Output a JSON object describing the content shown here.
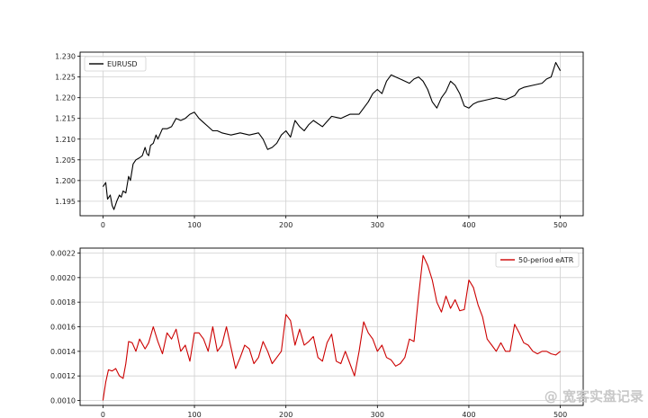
{
  "watermark": {
    "text": "@ 宽客实盘记录"
  },
  "chart_data": [
    {
      "type": "line",
      "title": "",
      "xlabel": "",
      "ylabel": "",
      "xlim": [
        -25,
        525
      ],
      "ylim": [
        1.1915,
        1.231
      ],
      "grid": true,
      "legend_position": "upper-left",
      "xticks": [
        0,
        100,
        200,
        300,
        400,
        500
      ],
      "xtick_labels": [
        "0",
        "100",
        "200",
        "300",
        "400",
        "500"
      ],
      "yticks": [
        1.195,
        1.2,
        1.205,
        1.21,
        1.215,
        1.22,
        1.225,
        1.23
      ],
      "ytick_labels": [
        "1.195",
        "1.200",
        "1.205",
        "1.210",
        "1.215",
        "1.220",
        "1.225",
        "1.230"
      ],
      "series": [
        {
          "name": "EURUSD",
          "color": "#000000",
          "x": [
            0,
            3,
            5,
            8,
            10,
            12,
            15,
            18,
            20,
            22,
            25,
            28,
            30,
            33,
            36,
            40,
            43,
            46,
            48,
            50,
            52,
            55,
            58,
            60,
            65,
            70,
            75,
            80,
            85,
            90,
            95,
            100,
            105,
            110,
            115,
            120,
            125,
            130,
            140,
            150,
            160,
            170,
            175,
            180,
            185,
            190,
            195,
            200,
            205,
            210,
            215,
            220,
            225,
            230,
            240,
            250,
            260,
            270,
            280,
            290,
            295,
            300,
            305,
            310,
            315,
            320,
            325,
            330,
            335,
            340,
            345,
            350,
            355,
            360,
            365,
            370,
            375,
            380,
            385,
            390,
            395,
            400,
            405,
            410,
            420,
            430,
            440,
            450,
            455,
            460,
            470,
            480,
            485,
            490,
            495,
            500
          ],
          "y": [
            1.1985,
            1.1995,
            1.1955,
            1.1965,
            1.194,
            1.193,
            1.195,
            1.1965,
            1.196,
            1.1975,
            1.197,
            1.201,
            1.2,
            1.204,
            1.205,
            1.2055,
            1.206,
            1.208,
            1.2065,
            1.206,
            1.2085,
            1.209,
            1.211,
            1.21,
            1.2125,
            1.2125,
            1.213,
            1.215,
            1.2145,
            1.215,
            1.216,
            1.2165,
            1.215,
            1.214,
            1.213,
            1.212,
            1.212,
            1.2115,
            1.211,
            1.2115,
            1.211,
            1.2115,
            1.21,
            1.2075,
            1.208,
            1.209,
            1.211,
            1.212,
            1.2105,
            1.2145,
            1.213,
            1.212,
            1.2135,
            1.2145,
            1.213,
            1.2155,
            1.215,
            1.216,
            1.216,
            1.219,
            1.221,
            1.222,
            1.221,
            1.224,
            1.2255,
            1.225,
            1.2245,
            1.224,
            1.2235,
            1.2245,
            1.225,
            1.224,
            1.222,
            1.219,
            1.2175,
            1.22,
            1.2215,
            1.224,
            1.223,
            1.221,
            1.218,
            1.2175,
            1.2185,
            1.219,
            1.2195,
            1.22,
            1.2195,
            1.2205,
            1.222,
            1.2225,
            1.223,
            1.2235,
            1.2245,
            1.225,
            1.2285,
            1.2265
          ]
        }
      ]
    },
    {
      "type": "line",
      "title": "",
      "xlabel": "",
      "ylabel": "",
      "xlim": [
        -25,
        525
      ],
      "ylim": [
        0.00096,
        0.00224
      ],
      "grid": true,
      "legend_position": "upper-right",
      "xticks": [
        0,
        100,
        200,
        300,
        400,
        500
      ],
      "xtick_labels": [
        "0",
        "100",
        "200",
        "300",
        "400",
        "500"
      ],
      "yticks": [
        0.001,
        0.0012,
        0.0014,
        0.0016,
        0.0018,
        0.002,
        0.0022
      ],
      "ytick_labels": [
        "0.0010",
        "0.0012",
        "0.0014",
        "0.0016",
        "0.0018",
        "0.0020",
        "0.0022"
      ],
      "series": [
        {
          "name": "50-period eATR",
          "color": "#cc0000",
          "x": [
            0,
            3,
            6,
            10,
            14,
            18,
            22,
            25,
            28,
            32,
            36,
            40,
            46,
            50,
            55,
            60,
            65,
            70,
            75,
            80,
            85,
            90,
            95,
            100,
            105,
            110,
            115,
            120,
            125,
            130,
            135,
            140,
            145,
            150,
            155,
            160,
            165,
            170,
            175,
            180,
            185,
            190,
            195,
            200,
            205,
            210,
            215,
            220,
            225,
            230,
            235,
            240,
            245,
            250,
            255,
            260,
            265,
            270,
            275,
            280,
            285,
            290,
            295,
            300,
            305,
            310,
            315,
            320,
            325,
            330,
            335,
            340,
            345,
            350,
            355,
            360,
            365,
            370,
            375,
            380,
            385,
            390,
            395,
            400,
            405,
            410,
            415,
            420,
            425,
            430,
            435,
            440,
            445,
            450,
            455,
            460,
            465,
            470,
            475,
            480,
            485,
            490,
            495,
            500
          ],
          "y": [
            0.001,
            0.00115,
            0.00125,
            0.00124,
            0.00126,
            0.0012,
            0.00118,
            0.0013,
            0.00148,
            0.00147,
            0.0014,
            0.0015,
            0.00142,
            0.00147,
            0.0016,
            0.00148,
            0.00138,
            0.00155,
            0.0015,
            0.00158,
            0.0014,
            0.00145,
            0.00132,
            0.00155,
            0.00155,
            0.0015,
            0.0014,
            0.0016,
            0.0014,
            0.00145,
            0.0016,
            0.00143,
            0.00126,
            0.00135,
            0.00145,
            0.00142,
            0.0013,
            0.00135,
            0.00148,
            0.0014,
            0.0013,
            0.00135,
            0.0014,
            0.0017,
            0.00165,
            0.00145,
            0.00158,
            0.00145,
            0.00148,
            0.00152,
            0.00135,
            0.00132,
            0.00147,
            0.00154,
            0.00132,
            0.0013,
            0.0014,
            0.0013,
            0.0012,
            0.0014,
            0.00164,
            0.00155,
            0.0015,
            0.0014,
            0.00145,
            0.00135,
            0.00133,
            0.00128,
            0.0013,
            0.00135,
            0.0015,
            0.00148,
            0.00185,
            0.00218,
            0.0021,
            0.00198,
            0.0018,
            0.00172,
            0.00185,
            0.00175,
            0.00182,
            0.00173,
            0.00174,
            0.00198,
            0.00192,
            0.00178,
            0.00168,
            0.0015,
            0.00145,
            0.0014,
            0.00147,
            0.0014,
            0.0014,
            0.00162,
            0.00155,
            0.00147,
            0.00145,
            0.0014,
            0.00138,
            0.0014,
            0.0014,
            0.00138,
            0.00137,
            0.0014
          ]
        }
      ]
    }
  ]
}
